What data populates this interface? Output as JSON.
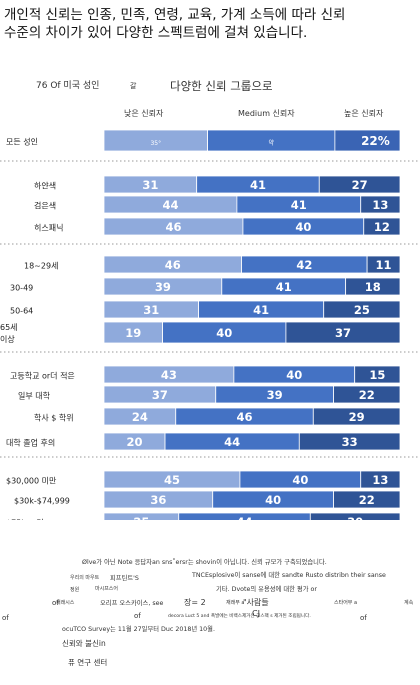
{
  "title_line1": "개인적 신뢰는 인종, 민족, 연령, 교육, 가계 소득에 따라 신뢰",
  "title_line2": "수준의 차이가 있어 다양한 스펙트럼에 걸쳐 있습니다.",
  "subtitle_part1": "76 Of 미국 성인",
  "subtitle_part2": "갈",
  "subtitle_part3": "다양한 신뢰 그룹으로",
  "legend": [
    "낮은 신뢰자",
    "Medium 신뢰자",
    "높은 신뢰자"
  ],
  "colors": {
    "low": "#8faadc",
    "medium": "#4472c4",
    "high": "#2f5496",
    "all_adults_high": "#3a64b4",
    "divider": "#999999"
  },
  "chart_data": {
    "type": "bar",
    "stacked": true,
    "orientation": "horizontal",
    "series_names": [
      "낮은 신뢰자",
      "Medium 신뢰자",
      "높은 신뢰자"
    ],
    "groups": [
      {
        "rows": [
          {
            "label": "모든 성인",
            "values": [
              35,
              43,
              22
            ],
            "value_labels": [
              "35°",
              "약",
              "22%"
            ]
          }
        ]
      },
      {
        "rows": [
          {
            "label": "하얀색",
            "values": [
              31,
              41,
              27
            ],
            "value_labels": [
              "31",
              "41",
              "27"
            ]
          },
          {
            "label": "검은색",
            "values": [
              44,
              41,
              13
            ],
            "value_labels": [
              "44",
              "41",
              "13"
            ]
          },
          {
            "label": "히스패닉",
            "values": [
              46,
              40,
              12
            ],
            "value_labels": [
              "46",
              "40",
              "12"
            ]
          }
        ]
      },
      {
        "rows": [
          {
            "label": "18~29세",
            "values": [
              46,
              42,
              11
            ],
            "value_labels": [
              "46",
              "42",
              "11"
            ]
          },
          {
            "label": "30-49",
            "values": [
              39,
              41,
              18
            ],
            "value_labels": [
              "39",
              "41",
              "18"
            ]
          },
          {
            "label": "50-64",
            "values": [
              31,
              41,
              25
            ],
            "value_labels": [
              "31",
              "41",
              "25"
            ]
          },
          {
            "label": "65세 이상",
            "values": [
              19,
              40,
              37
            ],
            "value_labels": [
              "19",
              "40",
              "37"
            ]
          }
        ]
      },
      {
        "rows": [
          {
            "label": "고등학교 or더 적은",
            "values": [
              43,
              40,
              15
            ],
            "value_labels": [
              "43",
              "40",
              "15"
            ]
          },
          {
            "label": "일부 대학",
            "values": [
              37,
              39,
              22
            ],
            "value_labels": [
              "37",
              "39",
              "22"
            ]
          },
          {
            "label": "학사 $ 학위",
            "values": [
              24,
              46,
              29
            ],
            "value_labels": [
              "24",
              "46",
              "29"
            ]
          },
          {
            "label": "대학 졸업 후의",
            "values": [
              20,
              44,
              33
            ],
            "value_labels": [
              "20",
              "44",
              "33"
            ]
          }
        ]
      },
      {
        "rows": [
          {
            "label": "$30,000 미만",
            "values": [
              45,
              40,
              13
            ],
            "value_labels": [
              "45",
              "40",
              "13"
            ]
          },
          {
            "label": "$30k-$74,999",
            "values": [
              36,
              40,
              22
            ],
            "value_labels": [
              "36",
              "40",
              "22"
            ]
          },
          {
            "label": "$75kor 더",
            "values": [
              25,
              44,
              30
            ],
            "value_labels": [
              "25",
              "44",
              "30"
            ]
          }
        ]
      }
    ]
  },
  "notes": {
    "line1": "Ølve가 아닌 Note 응답자an         sns˚ersr는 shovin이 아닙니다. 신뢰 규모가 구축되었습니다.",
    "line2": "TNCEsplosive이 sanse에 대한 sandte Rusto distribn their sanse",
    "line3": "기타. Dvote의 유용성에 대한 평가 or",
    "line4": "decora Luct 5 and 폭발에는 비백스제거선 고스팩 s 제거된 조립됩니다.",
    "line5": "ocuTCO Survey는 11월 27일부터 Duc 2018년 10월.",
    "frag1": "우리의 마우트",
    "frag2": "피프틴트'S",
    "frag3": "정원",
    "frag4": "마시프스어",
    "frag5": "재래시스",
    "frag6": "오리프 오스카이스, see",
    "frag7": "장= 2",
    "frag8": "\"사람들",
    "frag9": "재래부 a",
    "frag10": "스타어부 a",
    "frag11": "계속",
    "frag12": "of",
    "frag13": "of",
    "frag14": "of",
    "frag15": "of",
    "frag16": "CJ"
  },
  "source_line1": "신뢰와 불신in",
  "source_line2": "퓨 연구 센터"
}
